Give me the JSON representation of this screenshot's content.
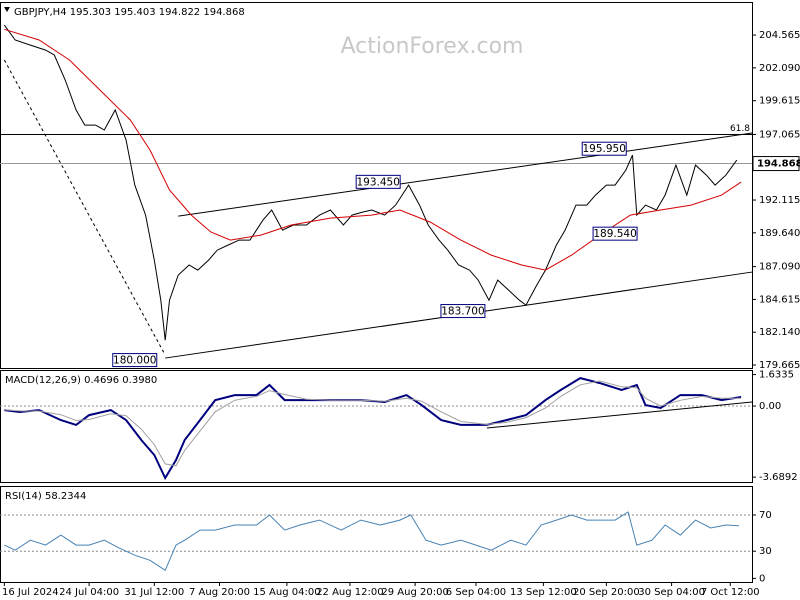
{
  "watermark": "ActionForex.com",
  "chart_data": [
    {
      "type": "line",
      "title": "GBPJPY,H4  195.303 195.403 194.822 194.868",
      "xlim": [
        0,
        346
      ],
      "xticks": [
        {
          "value": 2,
          "label": "16 Jul 2024"
        },
        {
          "value": 41,
          "label": "24 Jul 04:00"
        },
        {
          "value": 71,
          "label": "31 Jul 12:00"
        },
        {
          "value": 101,
          "label": "7 Aug 20:00"
        },
        {
          "value": 132,
          "label": "15 Aug 04:00"
        },
        {
          "value": 161,
          "label": "22 Aug 12:00"
        },
        {
          "value": 191,
          "label": "29 Aug 20:00"
        },
        {
          "value": 219,
          "label": "6 Sep 04:00"
        },
        {
          "value": 250,
          "label": "13 Sep 12:00"
        },
        {
          "value": 279,
          "label": "20 Sep 20:00"
        },
        {
          "value": 309,
          "label": "30 Sep 04:00"
        },
        {
          "value": 336,
          "label": "7 Oct 12:00"
        }
      ],
      "ylim": [
        179.44,
        207.06
      ],
      "yticks": [
        {
          "value": 204.565,
          "label": "204.565"
        },
        {
          "value": 202.09,
          "label": "202.090"
        },
        {
          "value": 199.615,
          "label": "199.615"
        },
        {
          "value": 197.065,
          "label": "197.065"
        },
        {
          "value": 192.115,
          "label": "192.115"
        },
        {
          "value": 189.64,
          "label": "189.640"
        },
        {
          "value": 187.09,
          "label": "187.090"
        },
        {
          "value": 184.615,
          "label": "184.615"
        },
        {
          "value": 182.14,
          "label": "182.140"
        },
        {
          "value": 179.665,
          "label": "179.665"
        }
      ],
      "current_price": {
        "value": 194.868,
        "label": "194.868"
      },
      "fib_level": 61.8,
      "fib_price": 197.065,
      "series": [
        {
          "color": "#000000",
          "x": [
            2,
            7,
            14,
            21,
            25,
            30,
            35,
            39,
            44,
            48,
            53,
            58,
            62,
            67,
            71,
            74,
            76,
            78,
            82,
            87,
            91,
            96,
            100,
            105,
            110,
            115,
            121,
            125,
            130,
            135,
            141,
            147,
            152,
            158,
            162,
            167,
            171,
            177,
            182,
            188,
            193,
            197,
            202,
            206,
            211,
            216,
            220,
            225,
            229,
            234,
            239,
            242,
            247,
            251,
            256,
            260,
            265,
            270,
            274,
            279,
            283,
            288,
            291,
            293,
            297,
            302,
            306,
            311,
            316,
            320,
            325,
            329,
            334,
            339
          ],
          "values": [
            205.32,
            204.19,
            203.81,
            203.43,
            203.06,
            201.17,
            198.91,
            197.77,
            197.77,
            197.4,
            198.91,
            196.64,
            193.24,
            190.98,
            187.58,
            184.56,
            181.54,
            184.56,
            186.45,
            187.21,
            186.83,
            187.58,
            188.34,
            188.72,
            189.09,
            189.09,
            190.6,
            191.36,
            189.85,
            190.23,
            190.23,
            190.98,
            191.36,
            190.23,
            190.98,
            191.21,
            191.36,
            190.98,
            191.73,
            193.24,
            191.73,
            190.23,
            189.09,
            188.34,
            187.21,
            186.83,
            186.07,
            184.56,
            186.07,
            185.32,
            184.56,
            184.19,
            185.7,
            186.83,
            188.72,
            189.85,
            191.73,
            191.73,
            192.49,
            193.24,
            193.24,
            194.38,
            195.51,
            190.98,
            191.73,
            191.36,
            192.49,
            194.75,
            192.49,
            194.75,
            194.0,
            193.24,
            194.0,
            195.13
          ]
        },
        {
          "color": "#d40000",
          "x": [
            2,
            18,
            32,
            46,
            60,
            69,
            78,
            88,
            97,
            106,
            120,
            134,
            152,
            171,
            184,
            198,
            212,
            226,
            240,
            251,
            263,
            276,
            290,
            304,
            318,
            332,
            341
          ],
          "values": [
            205.0,
            204.19,
            202.68,
            200.41,
            198.15,
            195.89,
            192.87,
            190.98,
            189.7,
            189.09,
            189.47,
            190.23,
            190.75,
            190.98,
            191.36,
            190.45,
            189.09,
            187.96,
            187.21,
            186.83,
            187.96,
            189.47,
            190.98,
            191.36,
            191.73,
            192.49,
            193.47
          ]
        }
      ],
      "trendlines": [
        {
          "x": [
            82,
            346
          ],
          "y": [
            190.9,
            197.17
          ]
        },
        {
          "x": [
            76,
            346
          ],
          "y": [
            180.19,
            186.68
          ]
        },
        {
          "x": [
            2,
            76
          ],
          "y": [
            202.68,
            180.42
          ],
          "dashed": true
        }
      ],
      "annotations": [
        {
          "value": 195.95,
          "label": "195.950",
          "x": 278
        },
        {
          "value": 193.45,
          "label": "193.450",
          "x": 174
        },
        {
          "value": 189.54,
          "label": "189.540",
          "x": 283
        },
        {
          "value": 183.7,
          "label": "183.700",
          "x": 213
        },
        {
          "value": 180.0,
          "label": "180.000",
          "x": 62
        }
      ]
    },
    {
      "type": "line",
      "title": "MACD(12,26,9) 0.4696 0.3980",
      "ylim": [
        -3.94,
        1.87
      ],
      "yticks": [
        {
          "value": 1.6335,
          "label": "1.6335"
        },
        {
          "value": 0,
          "label": "0.00"
        },
        {
          "value": -3.6892,
          "label": "-3.6892"
        }
      ],
      "levels": [
        0
      ],
      "series": [
        {
          "color": "#00007f",
          "x": [
            2,
            9,
            18,
            28,
            35,
            41,
            51,
            58,
            65,
            71,
            76,
            81,
            85,
            92,
            99,
            108,
            118,
            124,
            131,
            141,
            152,
            166,
            177,
            187,
            194,
            203,
            212,
            224,
            233,
            242,
            251,
            258,
            267,
            276,
            286,
            293,
            297,
            304,
            313,
            323,
            332,
            341
          ],
          "values": [
            -0.21,
            -0.31,
            -0.21,
            -0.73,
            -0.98,
            -0.47,
            -0.21,
            -0.73,
            -1.76,
            -2.54,
            -3.73,
            -2.8,
            -1.76,
            -0.73,
            0.31,
            0.57,
            0.57,
            1.09,
            0.31,
            0.31,
            0.31,
            0.31,
            0.21,
            0.57,
            0.05,
            -0.73,
            -0.98,
            -0.98,
            -0.73,
            -0.47,
            0.31,
            0.83,
            1.45,
            1.19,
            0.83,
            1.09,
            0.05,
            -0.1,
            0.57,
            0.57,
            0.31,
            0.47
          ]
        },
        {
          "color": "#a0a0a0",
          "x": [
            2,
            9,
            18,
            28,
            35,
            41,
            51,
            58,
            65,
            71,
            76,
            81,
            85,
            92,
            99,
            108,
            118,
            124,
            131,
            141,
            152,
            166,
            177,
            187,
            194,
            203,
            212,
            224,
            233,
            242,
            251,
            258,
            267,
            276,
            286,
            293,
            297,
            304,
            313,
            323,
            332,
            341
          ],
          "values": [
            -0.2,
            -0.25,
            -0.26,
            -0.45,
            -0.75,
            -0.7,
            -0.4,
            -0.5,
            -1.2,
            -2.0,
            -3.0,
            -3.1,
            -2.3,
            -1.3,
            -0.3,
            0.3,
            0.5,
            0.8,
            0.6,
            0.35,
            0.3,
            0.3,
            0.25,
            0.4,
            0.25,
            -0.3,
            -0.8,
            -0.95,
            -0.85,
            -0.6,
            -0.1,
            0.5,
            1.1,
            1.3,
            1.0,
            0.95,
            0.4,
            0.0,
            0.3,
            0.5,
            0.4,
            0.4
          ]
        }
      ],
      "trendlines": [
        {
          "x": [
            224,
            346
          ],
          "y": [
            -1.14,
            0.21
          ]
        }
      ]
    },
    {
      "type": "line",
      "title": "RSI(14) 58.2344",
      "ylim": [
        -4,
        102
      ],
      "yticks": [
        70,
        30,
        0
      ],
      "levels": [
        70,
        30
      ],
      "series": [
        {
          "color": "#4682b4",
          "x": [
            2,
            7,
            14,
            21,
            28,
            35,
            41,
            48,
            55,
            62,
            69,
            76,
            81,
            85,
            92,
            99,
            108,
            118,
            124,
            131,
            138,
            147,
            157,
            166,
            175,
            184,
            189,
            196,
            203,
            212,
            219,
            226,
            235,
            242,
            249,
            256,
            263,
            270,
            276,
            283,
            289,
            293,
            300,
            306,
            313,
            320,
            327,
            334,
            340
          ],
          "values": [
            36.7,
            31.1,
            42.2,
            36.7,
            47.8,
            36.7,
            36.7,
            42.2,
            33.3,
            25.6,
            20.0,
            8.9,
            36.7,
            42.2,
            53.3,
            53.3,
            58.9,
            58.9,
            70.0,
            53.3,
            58.9,
            64.4,
            53.3,
            64.4,
            58.9,
            64.4,
            70.0,
            42.2,
            36.7,
            42.2,
            36.7,
            31.1,
            42.2,
            36.7,
            58.9,
            64.4,
            70.0,
            64.4,
            64.4,
            64.4,
            73.3,
            36.7,
            42.2,
            58.9,
            47.8,
            64.4,
            55.6,
            58.9,
            58.2
          ]
        }
      ]
    }
  ]
}
